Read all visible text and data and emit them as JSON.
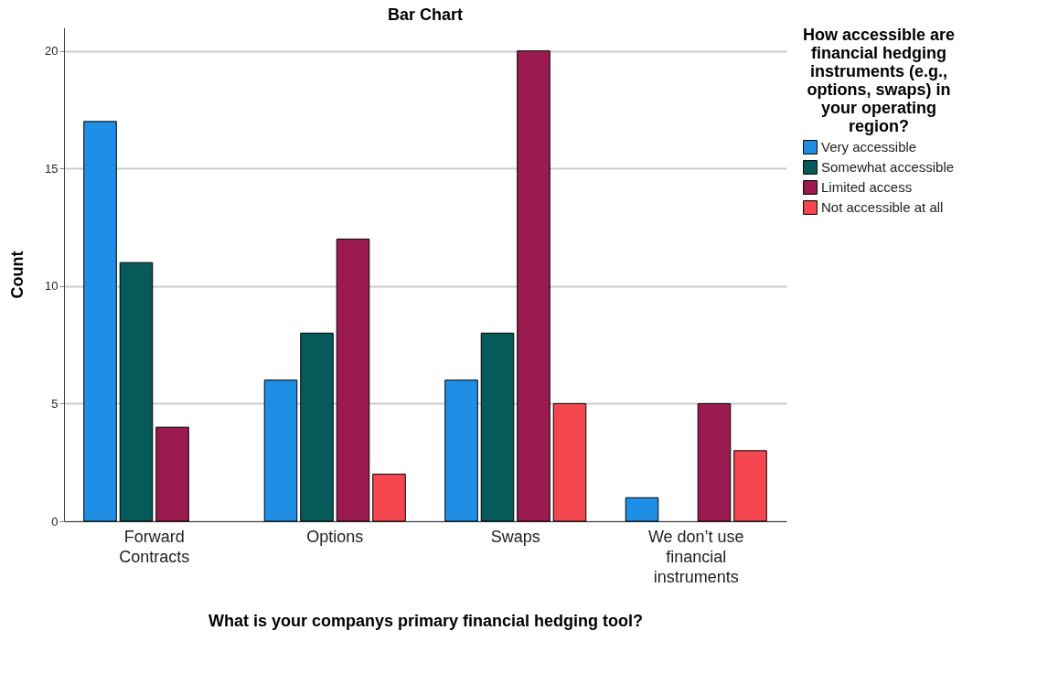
{
  "chart_data": {
    "type": "bar",
    "title": "Bar Chart",
    "xlabel": "What is your companys primary financial hedging tool?",
    "ylabel": "Count",
    "legend_title": "How accessible are financial hedging instruments (e.g., options, swaps) in your operating region?",
    "categories": [
      "Forward Contracts",
      "Options",
      "Swaps",
      "We don’t use financial instruments"
    ],
    "series": [
      {
        "name": "Very accessible",
        "color": "#1f8fe5",
        "values": [
          17,
          6,
          6,
          1
        ]
      },
      {
        "name": "Somewhat accessible",
        "color": "#065a5a",
        "values": [
          11,
          8,
          8,
          null
        ]
      },
      {
        "name": "Limited access",
        "color": "#9b1a4f",
        "values": [
          4,
          12,
          20,
          5
        ]
      },
      {
        "name": "Not accessible at all",
        "color": "#f5474f",
        "values": [
          null,
          2,
          5,
          3
        ]
      }
    ],
    "ylim": [
      0,
      21
    ],
    "yticks": [
      0,
      5,
      10,
      15,
      20
    ],
    "grid": "y",
    "legend": "right"
  }
}
